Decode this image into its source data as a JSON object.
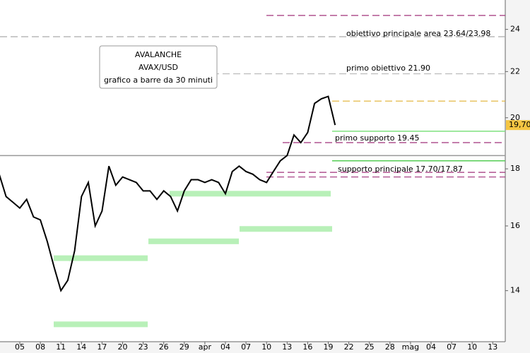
{
  "chart_data": {
    "type": "line",
    "info_box": [
      "AVALANCHE",
      "AVAX/USD",
      "grafico a barre da 30 minuti"
    ],
    "categories": [
      null,
      null,
      null,
      "05",
      null,
      null,
      "08",
      null,
      null,
      "11",
      null,
      null,
      "14",
      null,
      null,
      "17",
      null,
      null,
      "20",
      null,
      null,
      "23",
      null,
      null,
      "26",
      null,
      null,
      "29",
      null,
      null,
      "apr",
      null,
      null,
      "04",
      null,
      null,
      "07",
      null,
      null,
      "10",
      null,
      null,
      "13",
      null,
      null,
      "16",
      null,
      null,
      "19",
      null,
      null,
      "22",
      null,
      null,
      "25",
      null,
      null,
      "28",
      null,
      null,
      "mag",
      null,
      null,
      "04",
      null,
      null,
      "07",
      null,
      null,
      "10",
      null,
      null,
      "13",
      null
    ],
    "series": [
      {
        "color": "#000000",
        "values": [
          17.8,
          17.0,
          16.8,
          16.6,
          16.9,
          16.3,
          16.2,
          15.5,
          14.7,
          14.0,
          14.3,
          15.2,
          17.0,
          17.5,
          16.0,
          16.5,
          18.1,
          17.4,
          17.7,
          17.6,
          17.5,
          17.2,
          17.2,
          16.9,
          17.2,
          17.0,
          16.5,
          17.2,
          17.6,
          17.6,
          17.5,
          17.6,
          17.5,
          17.1,
          17.9,
          18.1,
          17.9,
          17.8,
          17.6,
          17.5,
          17.9,
          18.3,
          18.5,
          19.3,
          19.0,
          19.4,
          20.6,
          20.8,
          20.9,
          19.7,
          null,
          null,
          null,
          null,
          null,
          null,
          null,
          null,
          null,
          null,
          null,
          null,
          null,
          null,
          null,
          null,
          null,
          null,
          null,
          null,
          null,
          null,
          null,
          null
        ]
      }
    ],
    "last_price": {
      "value": 19.7,
      "label": "19,70"
    },
    "ylim": [
      12.6,
      25.5
    ],
    "log_scale": true,
    "yticks": [
      14,
      16,
      18,
      20,
      22,
      24
    ],
    "levels": [
      {
        "value": 24.7,
        "color": "#a0307a",
        "dashed": true
      },
      {
        "value": 23.64,
        "color": "#aaaaaa",
        "dashed": true
      },
      {
        "value": 21.9,
        "color": "#bbbbbb",
        "dashed": true
      },
      {
        "value": 20.7,
        "color": "#e0b030",
        "dashed": true
      },
      {
        "value": 19.45,
        "color": "#7ee07e",
        "dashed": false
      },
      {
        "value": 19.0,
        "color": "#a0307a",
        "dashed": true
      },
      {
        "value": 18.5,
        "color": "#999999",
        "dashed": false
      },
      {
        "value": 18.3,
        "color": "#55cc55",
        "dashed": false
      },
      {
        "value": 17.87,
        "color": "#a0307a",
        "dashed": true
      },
      {
        "value": 17.7,
        "color": "#a0307a",
        "dashed": true
      }
    ],
    "zones": {
      "color": "#b8f0b8",
      "values": [
        13.06,
        14.97,
        15.5,
        15.9,
        17.1
      ]
    },
    "annotations": [
      "obiettivo principale area 23.64/23.98",
      "primo obiettivo 21.90",
      "primo supporto 19.45",
      "supporto principale 17.70/17.87"
    ]
  }
}
